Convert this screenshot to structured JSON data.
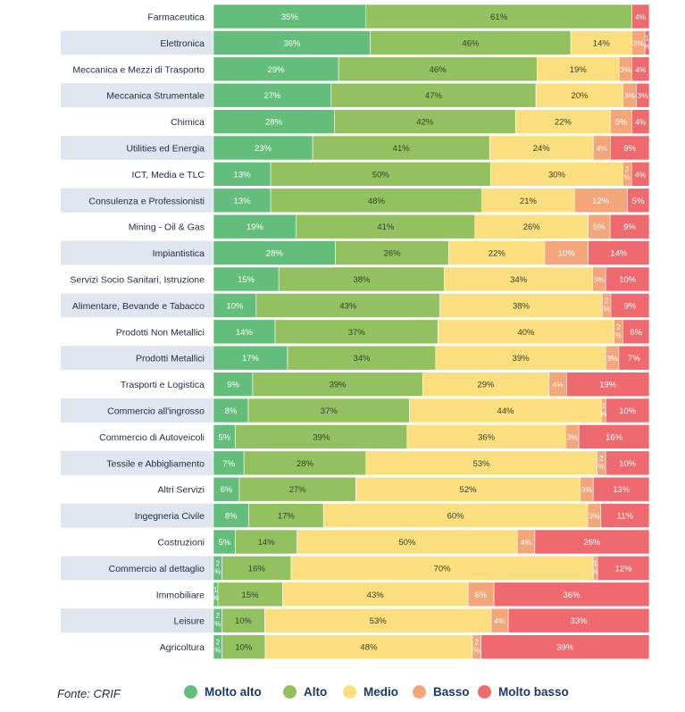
{
  "chart_data": {
    "type": "bar",
    "orientation": "horizontal",
    "stacked": true,
    "percent_stacked": true,
    "categories": [
      "Farmaceutica",
      "Elettronica",
      "Meccanica e Mezzi di Trasporto",
      "Meccanica Strumentale",
      "Chimica",
      "Utilities ed Energia",
      "ICT, Media e TLC",
      "Consulenza e Professionisti",
      "Mining - Oil & Gas",
      "Impiantistica",
      "Servizi Socio Sanitari, Istruzione",
      "Alimentare, Bevande e Tabacco",
      "Prodotti Non Metallici",
      "Prodotti Metallici",
      "Trasporti e Logistica",
      "Commercio all'ingrosso",
      "Commercio di Autoveicoli",
      "Tessile e Abbigliamento",
      "Altri Servizi",
      "Ingegneria Civile",
      "Costruzioni",
      "Commercio al dettaglio",
      "Immobiliare",
      "Leisure",
      "Agricoltura"
    ],
    "series": [
      {
        "name": "Molto  alto",
        "color": "#63be7b",
        "values": [
          35,
          36,
          29,
          27,
          28,
          23,
          13,
          13,
          19,
          28,
          15,
          10,
          14,
          17,
          9,
          8,
          5,
          7,
          6,
          8,
          5,
          2,
          1,
          2,
          2
        ]
      },
      {
        "name": "Alto",
        "color": "#94c160",
        "values": [
          61,
          46,
          46,
          47,
          42,
          41,
          50,
          48,
          41,
          26,
          38,
          43,
          37,
          34,
          39,
          37,
          39,
          28,
          27,
          17,
          14,
          16,
          15,
          10,
          10
        ]
      },
      {
        "name": "Medio",
        "color": "#fbdf7e",
        "values": [
          0,
          14,
          19,
          20,
          22,
          24,
          30,
          21,
          26,
          22,
          34,
          38,
          40,
          39,
          29,
          44,
          36,
          53,
          52,
          60,
          50,
          70,
          43,
          53,
          48
        ]
      },
      {
        "name": "Basso",
        "color": "#f3a67a",
        "values": [
          0,
          3,
          3,
          3,
          5,
          4,
          2,
          12,
          5,
          10,
          3,
          2,
          2,
          3,
          4,
          1,
          3,
          2,
          3,
          3,
          4,
          1,
          6,
          4,
          2
        ]
      },
      {
        "name": "Molto basso",
        "color": "#ee6a6e",
        "values": [
          4,
          1,
          4,
          3,
          4,
          9,
          4,
          5,
          9,
          14,
          10,
          9,
          6,
          7,
          19,
          10,
          16,
          10,
          13,
          11,
          26,
          12,
          36,
          33,
          39
        ]
      }
    ],
    "xlim": [
      0,
      100
    ],
    "legend_position": "bottom",
    "grid": false
  },
  "source_text": "Fonte: CRIF"
}
